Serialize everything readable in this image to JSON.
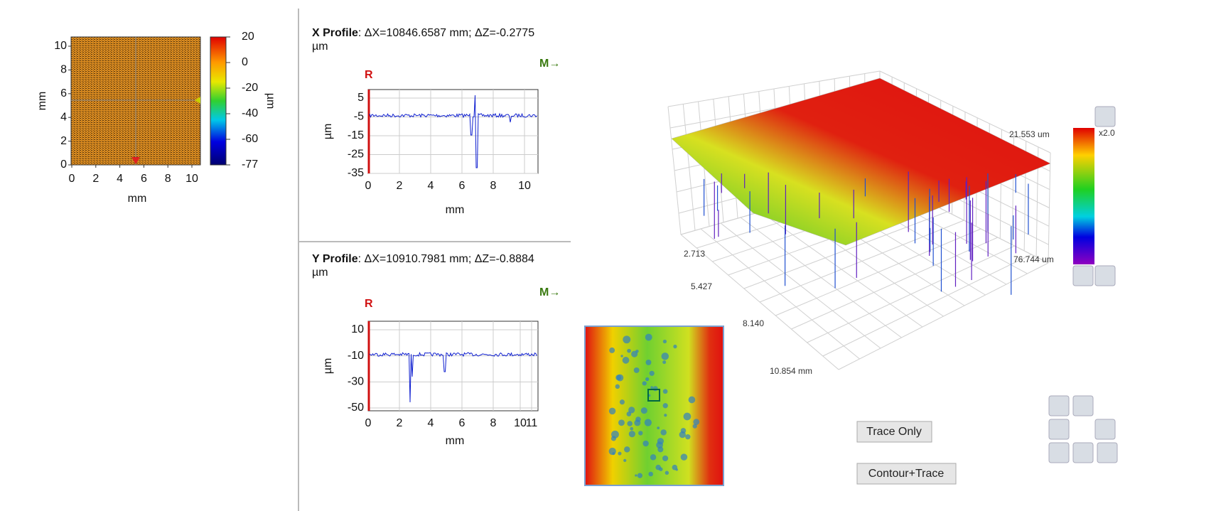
{
  "map_panel": {
    "y_label": "mm",
    "x_label": "mm",
    "y_ticks": [
      "10",
      "8",
      "6",
      "4",
      "2",
      "0"
    ],
    "x_ticks": [
      "0",
      "2",
      "4",
      "6",
      "8",
      "10"
    ],
    "colorbar_ticks": [
      "20",
      "0",
      "-20",
      "-40",
      "-60",
      "-77"
    ],
    "colorbar_label": "µm"
  },
  "x_profile": {
    "title_bold": "X Profile",
    "title_rest": ": ΔX=10846.6587 mm; ΔZ=-0.2775",
    "title_unit": "µm",
    "marker_m": "M→",
    "marker_r": "R",
    "y_label": "µm",
    "y_ticks": [
      "5",
      "-5",
      "-15",
      "-25",
      "-35"
    ],
    "x_ticks": [
      "0",
      "2",
      "4",
      "6",
      "8",
      "10"
    ],
    "x_label": "mm"
  },
  "y_profile": {
    "title_bold": "Y Profile",
    "title_rest": ": ΔX=10910.7981 mm; ΔZ=-0.8884",
    "title_unit": "µm",
    "marker_m": "M→",
    "marker_r": "R",
    "y_label": "µm",
    "y_ticks": [
      "10",
      "-10",
      "-30",
      "-50"
    ],
    "x_ticks": [
      "0",
      "2",
      "4",
      "6",
      "8",
      "10",
      "11"
    ],
    "x_label": "mm"
  },
  "view3d": {
    "axis_labels": [
      "2.713",
      "5.427",
      "8.140",
      "10.854 mm"
    ],
    "scale_top": "21.553 um",
    "scale_bottom": "76.744 um",
    "zoom": "x2.0"
  },
  "buttons": {
    "trace_only": "Trace Only",
    "contour_trace": "Contour+Trace"
  }
}
